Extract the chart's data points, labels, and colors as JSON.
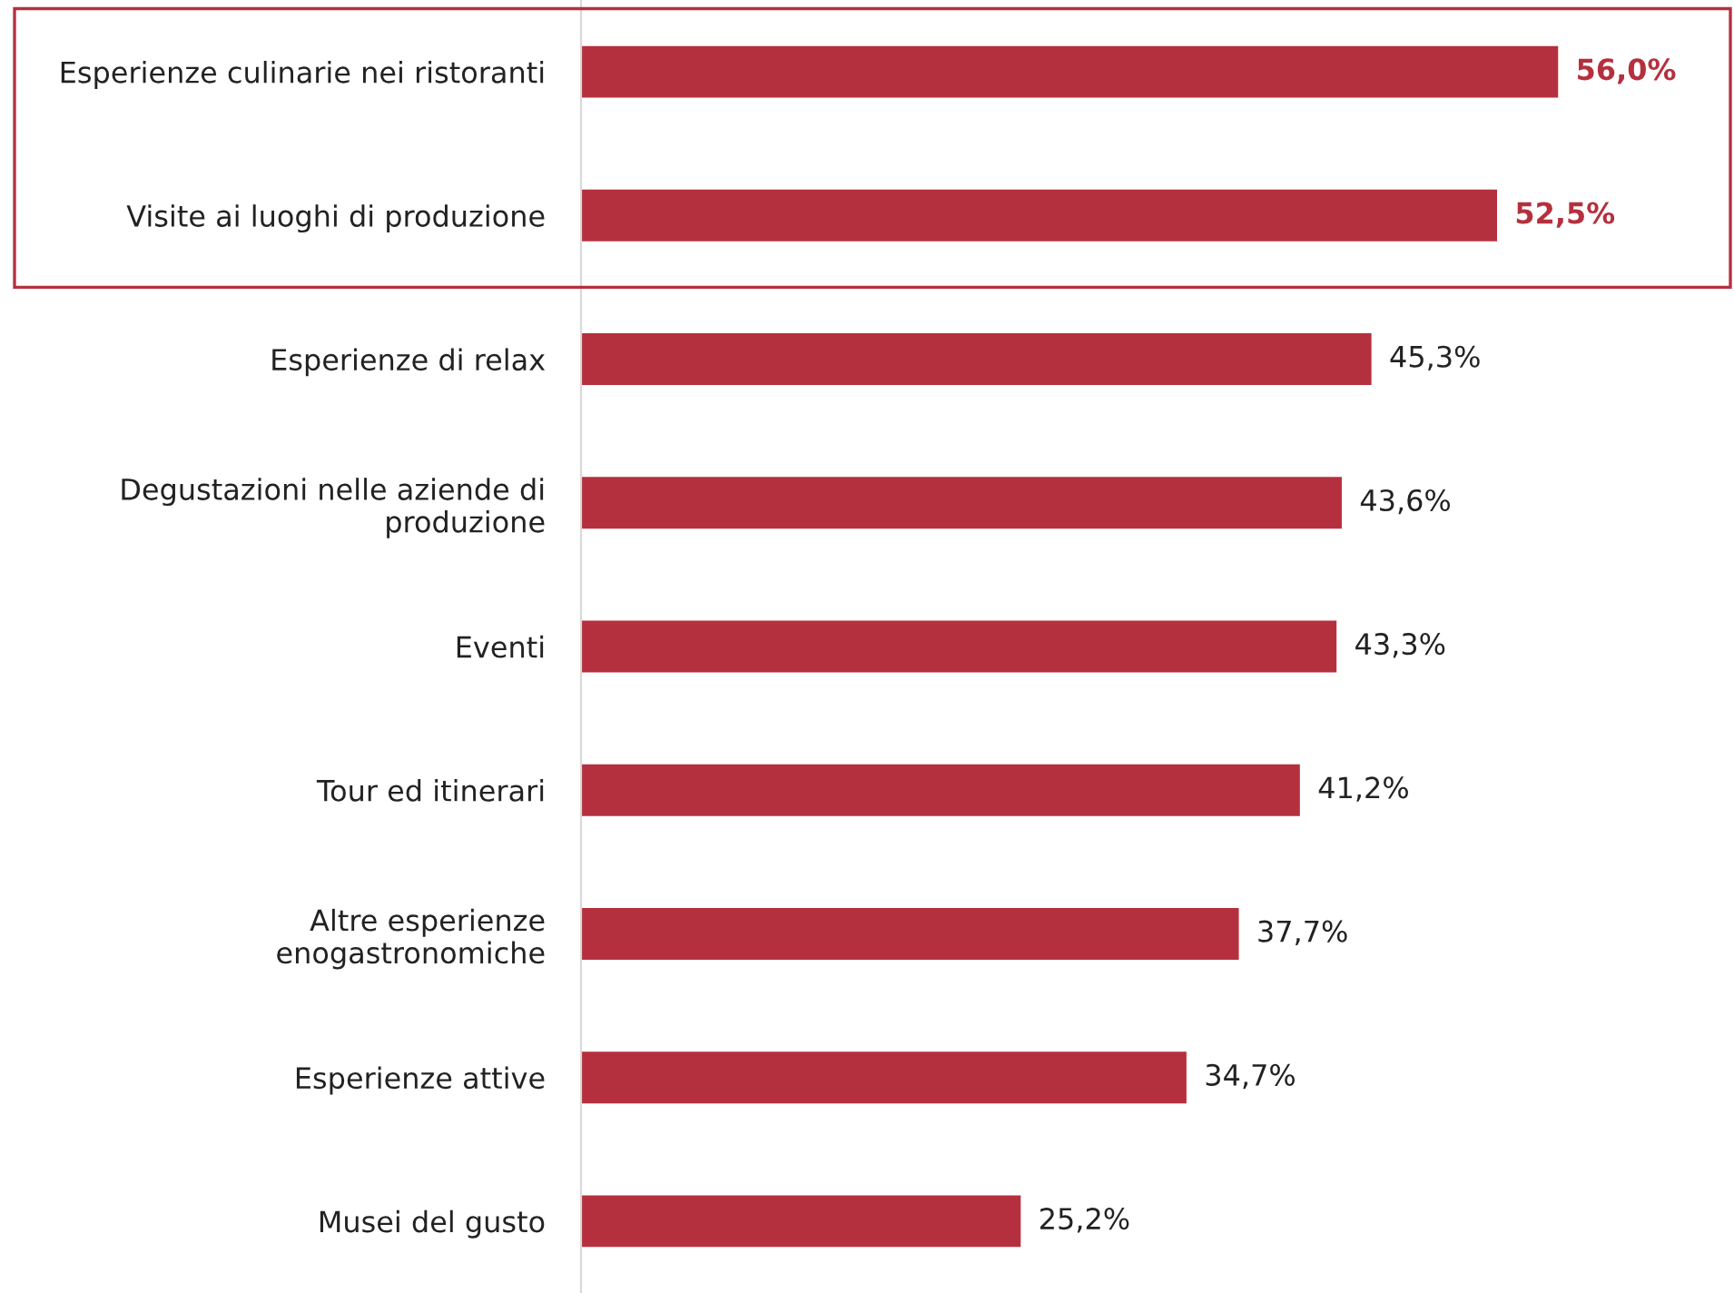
{
  "chart_data": {
    "type": "bar",
    "orientation": "horizontal",
    "categories": [
      "Esperienze culinarie nei ristoranti",
      "Visite ai luoghi di produzione",
      "Esperienze di relax",
      "Degustazioni nelle aziende di\nproduzione",
      "Eventi",
      "Tour ed itinerari",
      "Altre esperienze\nenogastronomiche",
      "Esperienze attive",
      "Musei del gusto"
    ],
    "values": [
      56.0,
      52.5,
      45.3,
      43.6,
      43.3,
      41.2,
      37.7,
      34.7,
      25.2
    ],
    "value_labels": [
      "56,0%",
      "52,5%",
      "45,3%",
      "43,6%",
      "43,3%",
      "41,2%",
      "37,7%",
      "34,7%",
      "25,2%"
    ],
    "color": "#b5303e",
    "grid": false,
    "legend": false
  }
}
